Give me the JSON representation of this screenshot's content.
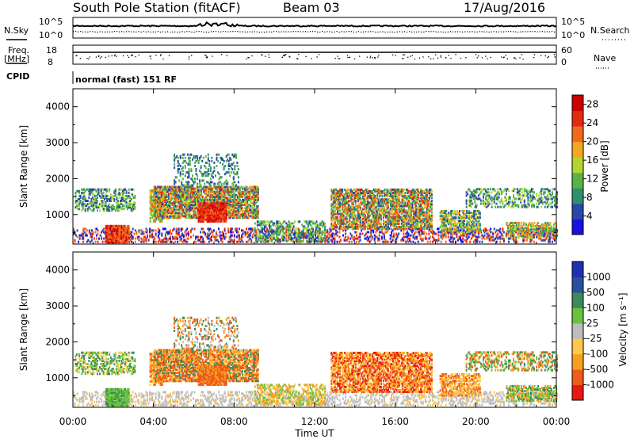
{
  "header": {
    "station": "South Pole Station (fitACF)",
    "beam": "Beam 03",
    "date": "17/Aug/2016"
  },
  "top_panels": {
    "nsky_label": "N.Sky",
    "nsky_scale_top": "10^5",
    "nsky_scale_bottom": "10^0",
    "nsearch_label": "N.Search",
    "nsearch_scale_top": "10^5",
    "nsearch_scale_bottom": "10^0",
    "freq_label": "Freq.",
    "freq_unit": "[MHz]",
    "freq_top": "18",
    "freq_bottom": "8",
    "nave_label": "Nave",
    "nave_top": "60",
    "nave_bottom": "0",
    "cpid_label": "CPID",
    "cpid_value": "normal (fast) 151 RF"
  },
  "colors": {
    "power": [
      "#1a10e0",
      "#2a46a8",
      "#2e8f6e",
      "#5ab245",
      "#b4d52e",
      "#f5a623",
      "#ef6a1c",
      "#e52a12",
      "#cc0000"
    ],
    "velocity": [
      "#e51a10",
      "#f05a1a",
      "#f7a020",
      "#ffc84a",
      "#bdbdbd",
      "#6ac23c",
      "#3a8a5a",
      "#2a4f9e",
      "#1f2fb0"
    ]
  },
  "chart_data": [
    {
      "type": "heatmap",
      "name": "power",
      "ylabel": "Slant Range [km]",
      "xlabel": "",
      "ylim": [
        180,
        4500
      ],
      "xlim": [
        0,
        24
      ],
      "yticks": [
        1000,
        2000,
        3000,
        4000
      ],
      "colorbar_label": "Power [dB]",
      "colorbar_ticks": [
        "4",
        "8",
        "12",
        "16",
        "20",
        "24",
        "28"
      ],
      "colorbar_range": [
        0,
        30
      ]
    },
    {
      "type": "heatmap",
      "name": "velocity",
      "ylabel": "Slant Range [km]",
      "xlabel": "Time UT",
      "ylim": [
        180,
        4500
      ],
      "xlim": [
        0,
        24
      ],
      "yticks": [
        1000,
        2000,
        3000,
        4000
      ],
      "xticks": [
        "00:00",
        "04:00",
        "08:00",
        "12:00",
        "16:00",
        "20:00",
        "00:00"
      ],
      "colorbar_label": "Velocity [m s⁻¹]",
      "colorbar_ticks": [
        "-1000",
        "-500",
        "-100",
        "-25",
        "25",
        "100",
        "500",
        "1000"
      ]
    }
  ]
}
